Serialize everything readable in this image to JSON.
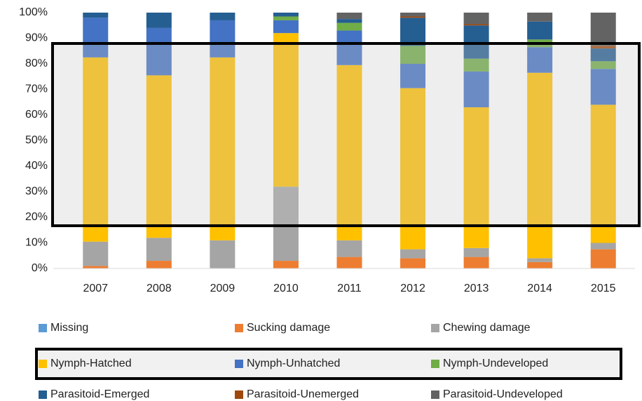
{
  "chart_data": {
    "type": "stacked_bar",
    "categories": [
      "2007",
      "2008",
      "2009",
      "2010",
      "2011",
      "2012",
      "2013",
      "2014",
      "2015"
    ],
    "series": [
      {
        "name": "Missing",
        "color": "#5b9bd5",
        "values": [
          0,
          0,
          0,
          0,
          0,
          0,
          0,
          0,
          0
        ]
      },
      {
        "name": "Sucking damage",
        "color": "#ed7d31",
        "values": [
          1,
          3,
          0,
          3,
          4.5,
          4,
          4.5,
          2.5,
          7.5
        ]
      },
      {
        "name": "Chewing damage",
        "color": "#a5a5a5",
        "values": [
          9.5,
          9,
          11,
          29,
          6.5,
          3.5,
          3.5,
          1.5,
          2.5
        ]
      },
      {
        "name": "Nymph-Hatched",
        "color": "#ffc000",
        "values": [
          72,
          63.5,
          71.5,
          60,
          68.5,
          63,
          55,
          72.5,
          54
        ]
      },
      {
        "name": "Nymph-Unhatched",
        "color": "#4472c4",
        "values": [
          15.5,
          18.5,
          14.5,
          5,
          13.5,
          9.5,
          14,
          10,
          14
        ]
      },
      {
        "name": "Nymph-Undeveloped",
        "color": "#70ad47",
        "values": [
          0,
          0,
          0,
          1.5,
          3,
          7,
          5,
          3,
          3
        ]
      },
      {
        "name": "Parasitoid-Emerged",
        "color": "#255e91",
        "values": [
          2,
          6,
          3,
          1.5,
          1.5,
          11,
          13,
          7,
          5
        ]
      },
      {
        "name": "Parasitoid-Unemerged",
        "color": "#9e480e",
        "values": [
          0,
          0,
          0,
          0,
          0,
          0.5,
          0.5,
          0,
          1
        ]
      },
      {
        "name": "Parasitoid-Undeveloped",
        "color": "#636363",
        "values": [
          0,
          0,
          0,
          0,
          2.5,
          1.5,
          4.5,
          3.5,
          13
        ]
      }
    ],
    "ylim": [
      0,
      100
    ],
    "yticks": [
      {
        "value": 0,
        "label": "0%"
      },
      {
        "value": 10,
        "label": "10%"
      },
      {
        "value": 20,
        "label": "20%"
      },
      {
        "value": 30,
        "label": "30%"
      },
      {
        "value": 40,
        "label": "40%"
      },
      {
        "value": 50,
        "label": "50%"
      },
      {
        "value": 60,
        "label": "60%"
      },
      {
        "value": 70,
        "label": "70%"
      },
      {
        "value": 80,
        "label": "80%"
      },
      {
        "value": 90,
        "label": "90%"
      },
      {
        "value": 100,
        "label": "100%"
      }
    ],
    "grid": false,
    "legend": "bottom"
  }
}
